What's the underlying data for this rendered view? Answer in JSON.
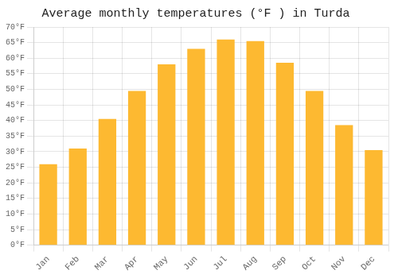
{
  "chart_data": {
    "type": "bar",
    "title": "Average monthly temperatures (°F ) in Turda",
    "categories": [
      "Jan",
      "Feb",
      "Mar",
      "Apr",
      "May",
      "Jun",
      "Jul",
      "Aug",
      "Sep",
      "Oct",
      "Nov",
      "Dec"
    ],
    "values": [
      26,
      31,
      40.5,
      49.5,
      58,
      63,
      66,
      65.5,
      58.5,
      49.5,
      38.5,
      30.5
    ],
    "color": "#FDB931",
    "ylim": [
      0,
      70
    ],
    "yticks": [
      {
        "value": 0,
        "label": "0°F"
      },
      {
        "value": 5,
        "label": "5°F"
      },
      {
        "value": 10,
        "label": "10°F"
      },
      {
        "value": 15,
        "label": "15°F"
      },
      {
        "value": 20,
        "label": "20°F"
      },
      {
        "value": 25,
        "label": "25°F"
      },
      {
        "value": 30,
        "label": "30°F"
      },
      {
        "value": 35,
        "label": "35°F"
      },
      {
        "value": 40,
        "label": "40°F"
      },
      {
        "value": 45,
        "label": "45°F"
      },
      {
        "value": 50,
        "label": "50°F"
      },
      {
        "value": 55,
        "label": "55°F"
      },
      {
        "value": 60,
        "label": "60°F"
      },
      {
        "value": 65,
        "label": "65°F"
      },
      {
        "value": 70,
        "label": "70°F"
      }
    ],
    "grid": true
  }
}
